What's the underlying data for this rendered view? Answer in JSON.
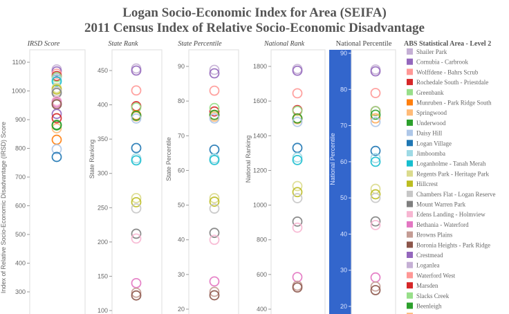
{
  "chart_data": {
    "type": "scatter",
    "title": "Logan Socio-Economic Index for Area (SEIFA)",
    "subtitle": "2011 Census Index of Relative Socio-Economic Disadvantage",
    "legend_title": "ABS Statistical Area - Level 2",
    "legend_position": "right",
    "panels": [
      {
        "key": "irsd",
        "title": "IRSD Score",
        "ylabel": "Index of Relative Socio-Economic Disadvantage (IRSD) Score",
        "ticks": [
          1100,
          1000,
          900,
          800,
          700,
          600,
          500,
          400,
          300
        ],
        "ylim": [
          270,
          1140
        ]
      },
      {
        "key": "sr",
        "title": "State Rank",
        "ylabel": "State Ranking",
        "ticks": [
          450,
          400,
          350,
          300,
          250,
          200,
          150,
          100
        ],
        "ylim": [
          99,
          466
        ]
      },
      {
        "key": "sp",
        "title": "State Percentile",
        "ylabel": "State Percentile",
        "ticks": [
          90,
          80,
          70,
          60,
          50,
          40,
          30,
          20
        ],
        "ylim": [
          19.3,
          94.5
        ]
      },
      {
        "key": "nr",
        "title": "National Rank",
        "ylabel": "National Ranking",
        "ticks": [
          1800,
          1600,
          1400,
          1200,
          1000,
          800,
          600,
          400
        ],
        "ylim": [
          372,
          1900
        ]
      },
      {
        "key": "np",
        "title": "National Percentile",
        "ylabel": "National Percentile",
        "ticks": [
          90,
          80,
          70,
          60,
          50,
          40,
          30,
          20
        ],
        "ylim": [
          17893,
          0
        ]
      }
    ],
    "series": [
      {
        "name": "Shailer Park",
        "color": "#c5b0d5",
        "irsd": 1075,
        "sr": 453,
        "sp": 89,
        "nr": 1785,
        "np": 85.5
      },
      {
        "name": "Cornubia - Carbrook",
        "color": "#9467bd",
        "irsd": 1068,
        "sr": 450,
        "sp": 88,
        "nr": 1775,
        "np": 85
      },
      {
        "name": "Wolffdene - Bahrs Scrub",
        "color": "#ff9896",
        "irsd": 1060,
        "sr": 421,
        "sp": 83,
        "nr": 1645,
        "np": 79
      },
      {
        "name": "Rochedale South - Priestdale",
        "color": "#d62728",
        "irsd": 1052,
        "sr": 398,
        "sp": 77,
        "nr": 1548,
        "np": 74
      },
      {
        "name": "Greenbank",
        "color": "#98df8a",
        "irsd": 1048,
        "sr": 396,
        "sp": 78,
        "nr": 1543,
        "np": 74
      },
      {
        "name": "Munruben - Park Ridge South",
        "color": "#ff7f0e",
        "irsd": 830,
        "sr": 385,
        "sp": 76,
        "nr": 1500,
        "np": 72
      },
      {
        "name": "Springwood",
        "color": "#ffbb78",
        "irsd": 870,
        "sr": 383,
        "sp": 75.5,
        "nr": 1495,
        "np": 72
      },
      {
        "name": "Underwood",
        "color": "#2ca02c",
        "irsd": 882,
        "sr": 384,
        "sp": 76,
        "nr": 1500,
        "np": 73
      },
      {
        "name": "Daisy Hill",
        "color": "#aec7e8",
        "irsd": 797,
        "sr": 380,
        "sp": 75,
        "nr": 1480,
        "np": 71
      },
      {
        "name": "Logan Village",
        "color": "#1f77b4",
        "irsd": 770,
        "sr": 337,
        "sp": 66,
        "nr": 1330,
        "np": 63
      },
      {
        "name": "Jimboomba",
        "color": "#9edae5",
        "irsd": 1040,
        "sr": 322,
        "sp": 63.5,
        "nr": 1275,
        "np": 61
      },
      {
        "name": "Loganholme - Tanah Merah",
        "color": "#17becf",
        "irsd": 1033,
        "sr": 319,
        "sp": 63,
        "nr": 1260,
        "np": 60
      },
      {
        "name": "Regents Park - Heritage Park",
        "color": "#dbdb8d",
        "irsd": 1010,
        "sr": 264,
        "sp": 52,
        "nr": 1110,
        "np": 52.5
      },
      {
        "name": "Hillcrest",
        "color": "#bcbd22",
        "irsd": 1005,
        "sr": 258,
        "sp": 51,
        "nr": 1075,
        "np": 51
      },
      {
        "name": "Chambers Flat - Logan Reserve",
        "color": "#c7c7c7",
        "irsd": 998,
        "sr": 249,
        "sp": 49,
        "nr": 1040,
        "np": 50
      },
      {
        "name": "Mount Warren Park",
        "color": "#7f7f7f",
        "irsd": 993,
        "sr": 212,
        "sp": 42,
        "nr": 905,
        "np": 43.5
      },
      {
        "name": "Edens Landing - Holmview",
        "color": "#f7b6d2",
        "irsd": 965,
        "sr": 205,
        "sp": 40,
        "nr": 870,
        "np": 42.5
      },
      {
        "name": "Bethania - Waterford",
        "color": "#e377c2",
        "irsd": 960,
        "sr": 140,
        "sp": 28,
        "nr": 585,
        "np": 28
      },
      {
        "name": "Browns Plains",
        "color": "#c49c94",
        "irsd": 955,
        "sr": 126,
        "sp": 25,
        "nr": 535,
        "np": 25.5
      },
      {
        "name": "Boronia Heights - Park Ridge",
        "color": "#8c564b",
        "irsd": 953,
        "sr": 122,
        "sp": 24,
        "nr": 525,
        "np": 24.5
      },
      {
        "name": "Crestmead",
        "color": "#9467bd",
        "irsd": 920
      },
      {
        "name": "Loganlea",
        "color": "#c5b0d5"
      },
      {
        "name": "Waterford West",
        "color": "#ff9896"
      },
      {
        "name": "Marsden",
        "color": "#d62728",
        "irsd": 905
      },
      {
        "name": "Slacks Creek",
        "color": "#98df8a"
      },
      {
        "name": "Beenleigh",
        "color": "#2ca02c",
        "irsd": 880
      },
      {
        "name": "",
        "color": "#ffbb78"
      }
    ]
  }
}
